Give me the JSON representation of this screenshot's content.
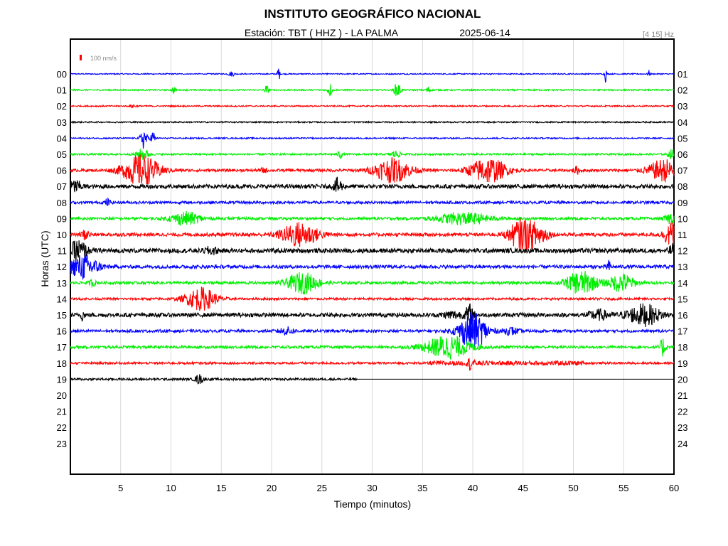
{
  "title": "INSTITUTO GEOGRÁFICO NACIONAL",
  "station": "Estación:  TBT ( HHZ ) - LA PALMA",
  "date": "2025-06-14",
  "filter": "[4 15] Hz",
  "scale_label": "100 nm/s",
  "colors": {
    "blue": "#0000ff",
    "green": "#00ee00",
    "red": "#ff0000",
    "black": "#000000",
    "scale_marker": "#ff0000"
  },
  "chart_data": {
    "type": "line",
    "xlabel": "Tiempo (minutos)",
    "ylabel": "Horas (UTC)",
    "xlim": [
      0,
      60
    ],
    "x_ticks": [
      "5",
      "10",
      "15",
      "20",
      "25",
      "30",
      "35",
      "40",
      "45",
      "50",
      "55",
      "60"
    ],
    "x_tick_values": [
      5,
      10,
      15,
      20,
      25,
      30,
      35,
      40,
      45,
      50,
      55,
      60
    ],
    "grid": true,
    "left_labels": [
      "00",
      "01",
      "02",
      "03",
      "04",
      "05",
      "06",
      "07",
      "08",
      "09",
      "10",
      "11",
      "12",
      "13",
      "14",
      "15",
      "16",
      "17",
      "18",
      "19",
      "20",
      "21",
      "22",
      "23"
    ],
    "right_labels": [
      "01",
      "02",
      "03",
      "04",
      "05",
      "06",
      "07",
      "08",
      "09",
      "10",
      "11",
      "12",
      "13",
      "14",
      "15",
      "16",
      "17",
      "18",
      "19",
      "20",
      "21",
      "22",
      "23",
      "24"
    ],
    "color_cycle": [
      "blue",
      "green",
      "red",
      "black"
    ],
    "recorded_until_minute": 28.5,
    "traces": [
      {
        "hour": "00",
        "noise": 0.05,
        "bursts": [
          {
            "t": 20.7,
            "amp": 0.9,
            "dur": 0.1
          },
          {
            "t": 53.2,
            "amp": 0.7,
            "dur": 0.1
          },
          {
            "t": 57.5,
            "amp": 0.3,
            "dur": 0.1
          },
          {
            "t": 16,
            "amp": 0.2,
            "dur": 0.3
          }
        ]
      },
      {
        "hour": "01",
        "noise": 0.06,
        "bursts": [
          {
            "t": 10.3,
            "amp": 0.3,
            "dur": 0.2
          },
          {
            "t": 19.5,
            "amp": 0.4,
            "dur": 0.2
          },
          {
            "t": 25.8,
            "amp": 0.6,
            "dur": 0.2
          },
          {
            "t": 32.5,
            "amp": 0.7,
            "dur": 0.3
          },
          {
            "t": 35.6,
            "amp": 0.3,
            "dur": 0.2
          }
        ]
      },
      {
        "hour": "02",
        "noise": 0.06,
        "bursts": [
          {
            "t": 6.2,
            "amp": 0.15,
            "dur": 0.3
          }
        ]
      },
      {
        "hour": "03",
        "noise": 0.06,
        "bursts": []
      },
      {
        "hour": "04",
        "noise": 0.06,
        "bursts": [
          {
            "t": 7.3,
            "amp": 1.0,
            "dur": 0.3
          },
          {
            "t": 8.2,
            "amp": 0.7,
            "dur": 0.2
          }
        ]
      },
      {
        "hour": "05",
        "noise": 0.08,
        "bursts": [
          {
            "t": 7.2,
            "amp": 0.5,
            "dur": 0.6
          },
          {
            "t": 26.8,
            "amp": 0.4,
            "dur": 0.2
          },
          {
            "t": 32.3,
            "amp": 0.3,
            "dur": 0.5
          },
          {
            "t": 59.8,
            "amp": 0.4,
            "dur": 0.4
          }
        ]
      },
      {
        "hour": "06",
        "noise": 0.12,
        "bursts": [
          {
            "t": 7.0,
            "amp": 1.35,
            "dur": 1.8
          },
          {
            "t": 19.2,
            "amp": 0.2,
            "dur": 0.3
          },
          {
            "t": 32.0,
            "amp": 1.05,
            "dur": 1.8
          },
          {
            "t": 41.5,
            "amp": 1.1,
            "dur": 1.8
          },
          {
            "t": 59.0,
            "amp": 0.95,
            "dur": 1.5
          },
          {
            "t": 50.3,
            "amp": 0.3,
            "dur": 0.3
          }
        ]
      },
      {
        "hour": "07",
        "noise": 0.18,
        "bursts": [
          {
            "t": 0.5,
            "amp": 0.5,
            "dur": 0.6
          },
          {
            "t": 26.6,
            "amp": 0.7,
            "dur": 0.4
          }
        ]
      },
      {
        "hour": "08",
        "noise": 0.12,
        "bursts": [
          {
            "t": 3.7,
            "amp": 0.3,
            "dur": 0.3
          }
        ]
      },
      {
        "hour": "09",
        "noise": 0.12,
        "bursts": [
          {
            "t": 11.5,
            "amp": 0.55,
            "dur": 1.5
          },
          {
            "t": 39.0,
            "amp": 0.5,
            "dur": 2.5
          },
          {
            "t": 59.8,
            "amp": 0.5,
            "dur": 0.6
          }
        ]
      },
      {
        "hour": "10",
        "noise": 0.15,
        "bursts": [
          {
            "t": 22.8,
            "amp": 1.05,
            "dur": 1.8
          },
          {
            "t": 44.8,
            "amp": 1.3,
            "dur": 1.2
          },
          {
            "t": 46.5,
            "amp": 0.8,
            "dur": 1.0
          },
          {
            "t": 59.7,
            "amp": 1.0,
            "dur": 0.7
          },
          {
            "t": 1.5,
            "amp": 0.4,
            "dur": 0.4
          }
        ]
      },
      {
        "hour": "11",
        "noise": 0.2,
        "bursts": [
          {
            "t": 0.8,
            "amp": 0.9,
            "dur": 0.8
          },
          {
            "t": 14,
            "amp": 0.3,
            "dur": 0.6
          },
          {
            "t": 59.9,
            "amp": 0.5,
            "dur": 0.4
          }
        ]
      },
      {
        "hour": "12",
        "noise": 0.15,
        "bursts": [
          {
            "t": 1.3,
            "amp": 1.05,
            "dur": 1.4
          },
          {
            "t": 53.5,
            "amp": 0.5,
            "dur": 0.2
          }
        ]
      },
      {
        "hour": "13",
        "noise": 0.12,
        "bursts": [
          {
            "t": 23.1,
            "amp": 0.9,
            "dur": 1.5
          },
          {
            "t": 50.8,
            "amp": 1.0,
            "dur": 1.5
          },
          {
            "t": 54.8,
            "amp": 0.8,
            "dur": 1.2
          },
          {
            "t": 2.2,
            "amp": 0.3,
            "dur": 0.3
          }
        ]
      },
      {
        "hour": "14",
        "noise": 0.1,
        "bursts": [
          {
            "t": 13.0,
            "amp": 1.0,
            "dur": 1.5
          }
        ]
      },
      {
        "hour": "15",
        "noise": 0.18,
        "bursts": [
          {
            "t": 1.2,
            "amp": 0.4,
            "dur": 0.2
          },
          {
            "t": 39.7,
            "amp": 0.9,
            "dur": 0.4
          },
          {
            "t": 57.0,
            "amp": 0.9,
            "dur": 1.6
          },
          {
            "t": 52.5,
            "amp": 0.4,
            "dur": 1.0
          },
          {
            "t": 38.0,
            "amp": 0.3,
            "dur": 1.0
          }
        ]
      },
      {
        "hour": "16",
        "noise": 0.12,
        "bursts": [
          {
            "t": 40.0,
            "amp": 1.6,
            "dur": 1.4
          },
          {
            "t": 21.5,
            "amp": 0.3,
            "dur": 0.8
          },
          {
            "t": 43.8,
            "amp": 0.3,
            "dur": 0.8
          }
        ]
      },
      {
        "hour": "17",
        "noise": 0.12,
        "bursts": [
          {
            "t": 37.5,
            "amp": 1.0,
            "dur": 2.2
          },
          {
            "t": 58.9,
            "amp": 0.8,
            "dur": 0.3
          }
        ]
      },
      {
        "hour": "18",
        "noise": 0.1,
        "bursts": [
          {
            "t": 39.8,
            "amp": 0.5,
            "dur": 0.3
          }
        ]
      },
      {
        "hour": "19",
        "noise": 0.1,
        "bursts": [
          {
            "t": 12.8,
            "amp": 0.4,
            "dur": 0.4
          }
        ]
      }
    ],
    "active_window": {
      "hour": "18",
      "from": 35.5,
      "to": 51,
      "noise": 0.2
    }
  }
}
